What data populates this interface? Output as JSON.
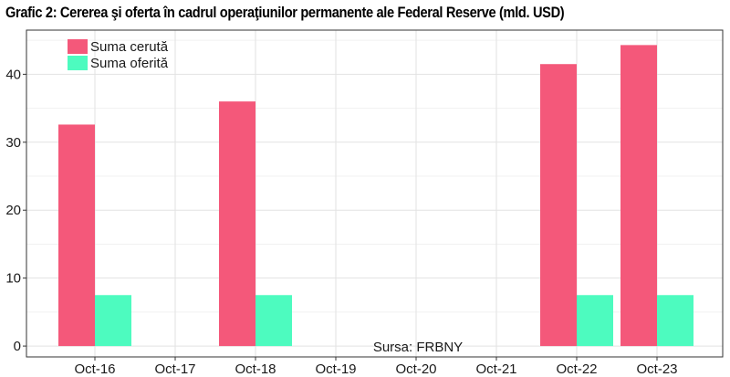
{
  "chart_data": {
    "type": "bar",
    "title": "Grafic 2: Cererea şi oferta în cadrul operaţiunilor permanente ale Federal Reserve (mld. USD)",
    "categories": [
      "Oct-16",
      "Oct-17",
      "Oct-18",
      "Oct-19",
      "Oct-20",
      "Oct-21",
      "Oct-22",
      "Oct-23"
    ],
    "series": [
      {
        "name": "Suma cerută",
        "color": "#f4587a",
        "values": [
          32.6,
          0,
          36.0,
          0,
          0,
          0,
          41.5,
          44.3
        ]
      },
      {
        "name": "Suma oferită",
        "color": "#4dfbbf",
        "values": [
          7.5,
          0,
          7.5,
          0,
          0,
          0,
          7.5,
          7.5
        ]
      }
    ],
    "ylim": [
      -1.6,
      46.5
    ],
    "yticks": [
      0,
      10,
      20,
      30,
      40
    ],
    "grid": true,
    "legend_position": "top-left",
    "annotation": "Sursa: FRBNY"
  }
}
